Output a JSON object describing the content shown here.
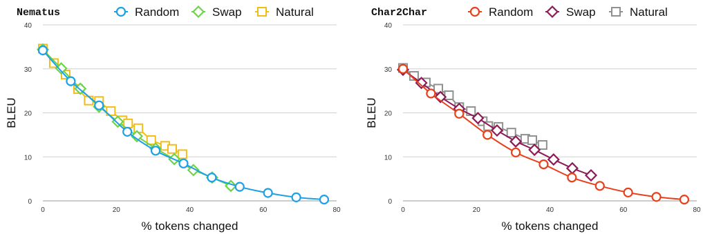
{
  "chart_data": [
    {
      "type": "line",
      "title": "Nematus",
      "xlabel": "% tokens changed",
      "ylabel": "BLEU",
      "xlim": [
        0,
        80
      ],
      "ylim": [
        0,
        40
      ],
      "xticks": [
        "0",
        "20",
        "40",
        "60",
        "80"
      ],
      "yticks": [
        "0",
        "10",
        "20",
        "30",
        "40"
      ],
      "grid": "horizontal",
      "legend": "top",
      "series": [
        {
          "name": "Random",
          "color": "#1ea0e6",
          "marker": "circle",
          "points": [
            [
              0,
              34.2
            ],
            [
              7.6,
              27.2
            ],
            [
              15.3,
              21.7
            ],
            [
              23,
              15.7
            ],
            [
              30.7,
              11.4
            ],
            [
              38.3,
              8.5
            ],
            [
              46,
              5.3
            ],
            [
              53.6,
              3.2
            ],
            [
              61.3,
              1.8
            ],
            [
              69,
              0.8
            ],
            [
              76.6,
              0.3
            ]
          ]
        },
        {
          "name": "Swap",
          "color": "#6dd44a",
          "marker": "diamond",
          "points": [
            [
              0,
              34.4
            ],
            [
              5,
              30.1
            ],
            [
              10.2,
              25.5
            ],
            [
              15.3,
              21.4
            ],
            [
              20.4,
              18
            ],
            [
              25.6,
              14.7
            ],
            [
              30.7,
              11.9
            ],
            [
              35.8,
              9.5
            ],
            [
              41,
              7
            ],
            [
              46.1,
              5.3
            ],
            [
              51.2,
              3.4
            ]
          ]
        },
        {
          "name": "Natural",
          "color": "#f3bd18",
          "marker": "square",
          "points": [
            [
              0,
              34.6
            ],
            [
              3,
              31.3
            ],
            [
              6.2,
              28.7
            ],
            [
              9.6,
              25.4
            ],
            [
              12.5,
              22.8
            ],
            [
              15.3,
              22.7
            ],
            [
              18.5,
              20.4
            ],
            [
              21.7,
              18.3
            ],
            [
              23.2,
              17.6
            ],
            [
              26,
              16.5
            ],
            [
              29.5,
              13.8
            ],
            [
              33.3,
              12.5
            ],
            [
              35.2,
              11.8
            ],
            [
              38,
              10.6
            ]
          ]
        }
      ]
    },
    {
      "type": "line",
      "title": "Char2Char",
      "xlabel": "% tokens changed",
      "ylabel": "BLEU",
      "xlim": [
        0,
        80
      ],
      "ylim": [
        0,
        40
      ],
      "xticks": [
        "0",
        "20",
        "40",
        "60",
        "80"
      ],
      "yticks": [
        "0",
        "10",
        "20",
        "30",
        "40"
      ],
      "grid": "horizontal",
      "legend": "top",
      "series": [
        {
          "name": "Random",
          "color": "#e8401c",
          "marker": "circle",
          "points": [
            [
              0,
              30
            ],
            [
              7.6,
              24.4
            ],
            [
              15.3,
              19.8
            ],
            [
              23,
              15
            ],
            [
              30.7,
              11
            ],
            [
              38.3,
              8.3
            ],
            [
              46,
              5.3
            ],
            [
              53.6,
              3.4
            ],
            [
              61.3,
              1.9
            ],
            [
              69,
              0.9
            ],
            [
              76.6,
              0.3
            ]
          ]
        },
        {
          "name": "Swap",
          "color": "#8b1a56",
          "marker": "diamond",
          "points": [
            [
              0,
              29.8
            ],
            [
              5,
              26.8
            ],
            [
              10.2,
              23.6
            ],
            [
              15.3,
              20.9
            ],
            [
              20.4,
              18.8
            ],
            [
              25.6,
              16
            ],
            [
              30.7,
              13.5
            ],
            [
              35.8,
              11.6
            ],
            [
              41,
              9.4
            ],
            [
              46.1,
              7.4
            ],
            [
              51.2,
              5.8
            ]
          ]
        },
        {
          "name": "Natural",
          "color": "#909090",
          "marker": "square",
          "points": [
            [
              0,
              30.2
            ],
            [
              3,
              28.4
            ],
            [
              6.2,
              26.9
            ],
            [
              9.6,
              25.5
            ],
            [
              12.5,
              24
            ],
            [
              15.3,
              21.3
            ],
            [
              18.5,
              20.4
            ],
            [
              21.7,
              18.1
            ],
            [
              23.2,
              17
            ],
            [
              26,
              16.8
            ],
            [
              29.5,
              15.5
            ],
            [
              33.3,
              14.1
            ],
            [
              35.2,
              13.8
            ],
            [
              38,
              12.7
            ]
          ]
        }
      ]
    }
  ]
}
